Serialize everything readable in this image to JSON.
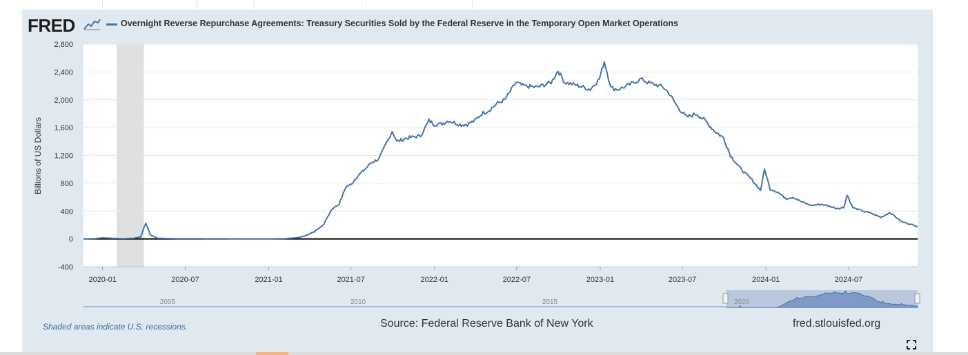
{
  "logo": {
    "text": "FRED",
    "icon": "line-chart-icon"
  },
  "legend": {
    "label": "Overnight Reverse Repurchase Agreements: Treasury Securities Sold by the Federal Reserve in the Temporary Open Market Operations",
    "color": "#4572a7"
  },
  "footer": {
    "recession_note": "Shaded areas indicate U.S. recessions.",
    "source": "Source: Federal Reserve Bank of New York",
    "site": "fred.stlouisfed.org",
    "fullscreen_icon": "fullscreen-icon"
  },
  "colors": {
    "frame": "#e1e9f0",
    "series": "#4572a7",
    "recession": "#e0e0e0",
    "navigator": "#6f8fbf"
  },
  "chart_data": {
    "type": "line",
    "title": "",
    "xlabel": "",
    "ylabel": "Billions of US Dollars",
    "ylim": [
      -400,
      2800
    ],
    "yticks": [
      -400,
      0,
      400,
      800,
      1200,
      1600,
      2000,
      2400,
      2800
    ],
    "ytick_labels": [
      "-400",
      "0",
      "400",
      "800",
      "1,200",
      "1,600",
      "2,000",
      "2,400",
      "2,800"
    ],
    "xlim": [
      "2019-11-20",
      "2024-11-30"
    ],
    "xticks": [
      "2020-01",
      "2020-07",
      "2021-01",
      "2021-07",
      "2022-01",
      "2022-07",
      "2023-01",
      "2023-07",
      "2024-01",
      "2024-07"
    ],
    "recession": {
      "start": "2020-02",
      "end": "2020-04"
    },
    "series": [
      {
        "name": "Overnight Reverse Repurchase Agreements",
        "x": [
          "2019-11-20",
          "2019-12-15",
          "2020-01-01",
          "2020-01-20",
          "2020-02-15",
          "2020-03-10",
          "2020-03-25",
          "2020-04-05",
          "2020-04-15",
          "2020-05-01",
          "2020-06-01",
          "2020-09-01",
          "2021-01-01",
          "2021-02-01",
          "2021-03-01",
          "2021-03-20",
          "2021-04-10",
          "2021-05-01",
          "2021-05-20",
          "2021-06-05",
          "2021-06-20",
          "2021-07-01",
          "2021-07-15",
          "2021-08-01",
          "2021-08-15",
          "2021-09-01",
          "2021-09-15",
          "2021-09-30",
          "2021-10-10",
          "2021-11-01",
          "2021-12-01",
          "2021-12-20",
          "2021-12-31",
          "2022-01-15",
          "2022-02-01",
          "2022-03-01",
          "2022-03-15",
          "2022-03-31",
          "2022-04-15",
          "2022-05-01",
          "2022-05-20",
          "2022-06-05",
          "2022-06-20",
          "2022-06-30",
          "2022-07-15",
          "2022-08-15",
          "2022-09-15",
          "2022-09-30",
          "2022-10-15",
          "2022-11-15",
          "2022-12-10",
          "2022-12-30",
          "2023-01-10",
          "2023-01-25",
          "2023-02-10",
          "2023-03-01",
          "2023-04-01",
          "2023-04-15",
          "2023-05-01",
          "2023-05-20",
          "2023-06-01",
          "2023-06-20",
          "2023-07-10",
          "2023-08-01",
          "2023-08-20",
          "2023-09-10",
          "2023-09-30",
          "2023-10-15",
          "2023-11-01",
          "2023-11-15",
          "2023-12-01",
          "2023-12-20",
          "2023-12-29",
          "2024-01-10",
          "2024-01-25",
          "2024-02-15",
          "2024-03-01",
          "2024-03-20",
          "2024-04-10",
          "2024-05-01",
          "2024-05-20",
          "2024-06-05",
          "2024-06-20",
          "2024-06-28",
          "2024-07-10",
          "2024-08-01",
          "2024-08-20",
          "2024-09-10",
          "2024-09-30",
          "2024-10-10",
          "2024-10-25",
          "2024-11-10",
          "2024-11-30"
        ],
        "values": [
          0,
          5,
          15,
          10,
          5,
          10,
          30,
          230,
          60,
          10,
          5,
          2,
          1,
          3,
          15,
          40,
          100,
          200,
          430,
          500,
          750,
          780,
          900,
          1000,
          1100,
          1150,
          1350,
          1550,
          1400,
          1450,
          1480,
          1700,
          1650,
          1650,
          1700,
          1640,
          1650,
          1700,
          1800,
          1850,
          1950,
          2000,
          2150,
          2250,
          2200,
          2180,
          2250,
          2420,
          2250,
          2200,
          2150,
          2300,
          2550,
          2170,
          2150,
          2200,
          2300,
          2250,
          2220,
          2180,
          2100,
          1900,
          1750,
          1800,
          1700,
          1550,
          1450,
          1200,
          1050,
          950,
          850,
          700,
          1000,
          720,
          680,
          580,
          600,
          530,
          480,
          500,
          470,
          440,
          450,
          630,
          450,
          400,
          370,
          310,
          380,
          330,
          250,
          220,
          180
        ]
      }
    ],
    "navigator": {
      "labels": [
        "2005",
        "2010",
        "2015",
        "2020"
      ]
    }
  }
}
